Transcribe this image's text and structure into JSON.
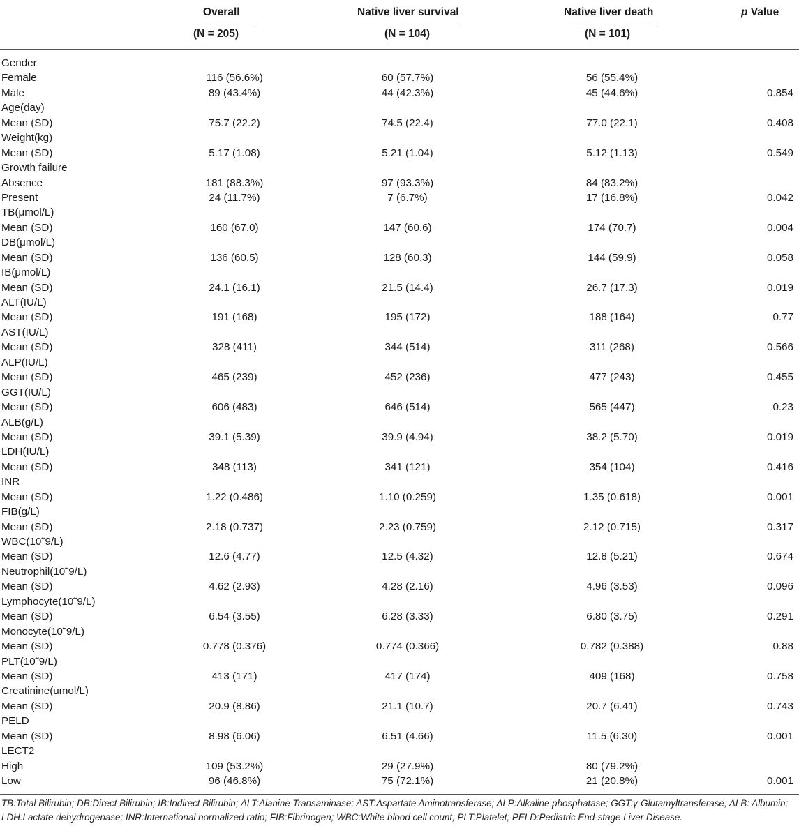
{
  "header": {
    "overall": "Overall",
    "overall_n": "(N = 205)",
    "survival": "Native liver survival",
    "survival_n": "(N = 104)",
    "death": "Native liver death",
    "death_n": "(N = 101)",
    "p_italic": "p",
    "p_rest": " Value"
  },
  "rows": [
    {
      "label": "Gender",
      "overall": "",
      "survival": "",
      "death": "",
      "p": ""
    },
    {
      "label": "Female",
      "overall": "116 (56.6%)",
      "survival": "60 (57.7%)",
      "death": "56 (55.4%)",
      "p": ""
    },
    {
      "label": "Male",
      "overall": "89 (43.4%)",
      "survival": "44 (42.3%)",
      "death": "45 (44.6%)",
      "p": "0.854"
    },
    {
      "label": "Age(day)",
      "overall": "",
      "survival": "",
      "death": "",
      "p": ""
    },
    {
      "label": "Mean (SD)",
      "overall": "75.7 (22.2)",
      "survival": "74.5 (22.4)",
      "death": "77.0 (22.1)",
      "p": "0.408"
    },
    {
      "label": "Weight(kg)",
      "overall": "",
      "survival": "",
      "death": "",
      "p": ""
    },
    {
      "label": "Mean (SD)",
      "overall": "5.17 (1.08)",
      "survival": "5.21 (1.04)",
      "death": "5.12 (1.13)",
      "p": "0.549"
    },
    {
      "label": "Growth failure",
      "overall": "",
      "survival": "",
      "death": "",
      "p": ""
    },
    {
      "label": "Absence",
      "overall": "181 (88.3%)",
      "survival": "97 (93.3%)",
      "death": "84 (83.2%)",
      "p": ""
    },
    {
      "label": "Present",
      "overall": "24 (11.7%)",
      "survival": "7 (6.7%)",
      "death": "17 (16.8%)",
      "p": "0.042"
    },
    {
      "label": "TB(μmol/L)",
      "overall": "",
      "survival": "",
      "death": "",
      "p": ""
    },
    {
      "label": "Mean (SD)",
      "overall": "160 (67.0)",
      "survival": "147 (60.6)",
      "death": "174 (70.7)",
      "p": "0.004"
    },
    {
      "label": "DB(μmol/L)",
      "overall": "",
      "survival": "",
      "death": "",
      "p": ""
    },
    {
      "label": "Mean (SD)",
      "overall": "136 (60.5)",
      "survival": "128 (60.3)",
      "death": "144 (59.9)",
      "p": "0.058"
    },
    {
      "label": "IB(μmol/L)",
      "overall": "",
      "survival": "",
      "death": "",
      "p": ""
    },
    {
      "label": "Mean (SD)",
      "overall": "24.1 (16.1)",
      "survival": "21.5 (14.4)",
      "death": "26.7 (17.3)",
      "p": "0.019"
    },
    {
      "label": "ALT(IU/L)",
      "overall": "",
      "survival": "",
      "death": "",
      "p": ""
    },
    {
      "label": "Mean (SD)",
      "overall": "191 (168)",
      "survival": "195 (172)",
      "death": "188 (164)",
      "p": "0.77"
    },
    {
      "label": "AST(IU/L)",
      "overall": "",
      "survival": "",
      "death": "",
      "p": ""
    },
    {
      "label": "Mean (SD)",
      "overall": "328 (411)",
      "survival": "344 (514)",
      "death": "311 (268)",
      "p": "0.566"
    },
    {
      "label": "ALP(IU/L)",
      "overall": "",
      "survival": "",
      "death": "",
      "p": ""
    },
    {
      "label": "Mean (SD)",
      "overall": "465 (239)",
      "survival": "452 (236)",
      "death": "477 (243)",
      "p": "0.455"
    },
    {
      "label": "GGT(IU/L)",
      "overall": "",
      "survival": "",
      "death": "",
      "p": ""
    },
    {
      "label": "Mean (SD)",
      "overall": "606 (483)",
      "survival": "646 (514)",
      "death": "565 (447)",
      "p": "0.23"
    },
    {
      "label": "ALB(g/L)",
      "overall": "",
      "survival": "",
      "death": "",
      "p": ""
    },
    {
      "label": "Mean (SD)",
      "overall": "39.1 (5.39)",
      "survival": "39.9 (4.94)",
      "death": "38.2 (5.70)",
      "p": "0.019"
    },
    {
      "label": "LDH(IU/L)",
      "overall": "",
      "survival": "",
      "death": "",
      "p": ""
    },
    {
      "label": "Mean (SD)",
      "overall": "348 (113)",
      "survival": "341 (121)",
      "death": "354 (104)",
      "p": "0.416"
    },
    {
      "label": "INR",
      "overall": "",
      "survival": "",
      "death": "",
      "p": ""
    },
    {
      "label": "Mean (SD)",
      "overall": "1.22 (0.486)",
      "survival": "1.10 (0.259)",
      "death": "1.35 (0.618)",
      "p": "0.001"
    },
    {
      "label": "FIB(g/L)",
      "overall": "",
      "survival": "",
      "death": "",
      "p": ""
    },
    {
      "label": "Mean (SD)",
      "overall": "2.18 (0.737)",
      "survival": "2.23 (0.759)",
      "death": "2.12 (0.715)",
      "p": "0.317"
    },
    {
      "label": "WBC(10˜9/L)",
      "overall": "",
      "survival": "",
      "death": "",
      "p": ""
    },
    {
      "label": "Mean (SD)",
      "overall": "12.6 (4.77)",
      "survival": "12.5 (4.32)",
      "death": "12.8 (5.21)",
      "p": "0.674"
    },
    {
      "label": "Neutrophil(10˜9/L)",
      "overall": "",
      "survival": "",
      "death": "",
      "p": ""
    },
    {
      "label": "Mean (SD)",
      "overall": "4.62 (2.93)",
      "survival": "4.28 (2.16)",
      "death": "4.96 (3.53)",
      "p": "0.096"
    },
    {
      "label": "Lymphocyte(10˜9/L)",
      "overall": "",
      "survival": "",
      "death": "",
      "p": ""
    },
    {
      "label": "Mean (SD)",
      "overall": "6.54 (3.55)",
      "survival": "6.28 (3.33)",
      "death": "6.80 (3.75)",
      "p": "0.291"
    },
    {
      "label": "Monocyte(10˜9/L)",
      "overall": "",
      "survival": "",
      "death": "",
      "p": ""
    },
    {
      "label": "Mean (SD)",
      "overall": "0.778 (0.376)",
      "survival": "0.774 (0.366)",
      "death": "0.782 (0.388)",
      "p": "0.88"
    },
    {
      "label": "PLT(10˜9/L)",
      "overall": "",
      "survival": "",
      "death": "",
      "p": ""
    },
    {
      "label": "Mean (SD)",
      "overall": "413 (171)",
      "survival": "417 (174)",
      "death": "409 (168)",
      "p": "0.758"
    },
    {
      "label": "Creatinine(umol/L)",
      "overall": "",
      "survival": "",
      "death": "",
      "p": ""
    },
    {
      "label": "Mean (SD)",
      "overall": "20.9 (8.86)",
      "survival": "21.1 (10.7)",
      "death": "20.7 (6.41)",
      "p": "0.743"
    },
    {
      "label": "PELD",
      "overall": "",
      "survival": "",
      "death": "",
      "p": ""
    },
    {
      "label": "Mean (SD)",
      "overall": "8.98 (6.06)",
      "survival": "6.51 (4.66)",
      "death": "11.5 (6.30)",
      "p": "0.001"
    },
    {
      "label": "LECT2",
      "overall": "",
      "survival": "",
      "death": "",
      "p": ""
    },
    {
      "label": "High",
      "overall": "109 (53.2%)",
      "survival": "29 (27.9%)",
      "death": "80 (79.2%)",
      "p": ""
    },
    {
      "label": "Low",
      "overall": "96 (46.8%)",
      "survival": "75 (72.1%)",
      "death": "21 (20.8%)",
      "p": "0.001"
    }
  ],
  "footnote": "TB:Total Bilirubin; DB:Direct Bilirubin; IB:Indirect Bilirubin; ALT:Alanine Transaminase; AST:Aspartate Aminotransferase; ALP:Alkaline phosphatase; GGT:γ-Glutamyltransferase; ALB: Albumin; LDH:Lactate dehydrogenase; INR:International normalized ratio; FIB:Fibrinogen; WBC:White blood cell count; PLT:Platelet; PELD:Pediatric End-stage Liver Disease."
}
